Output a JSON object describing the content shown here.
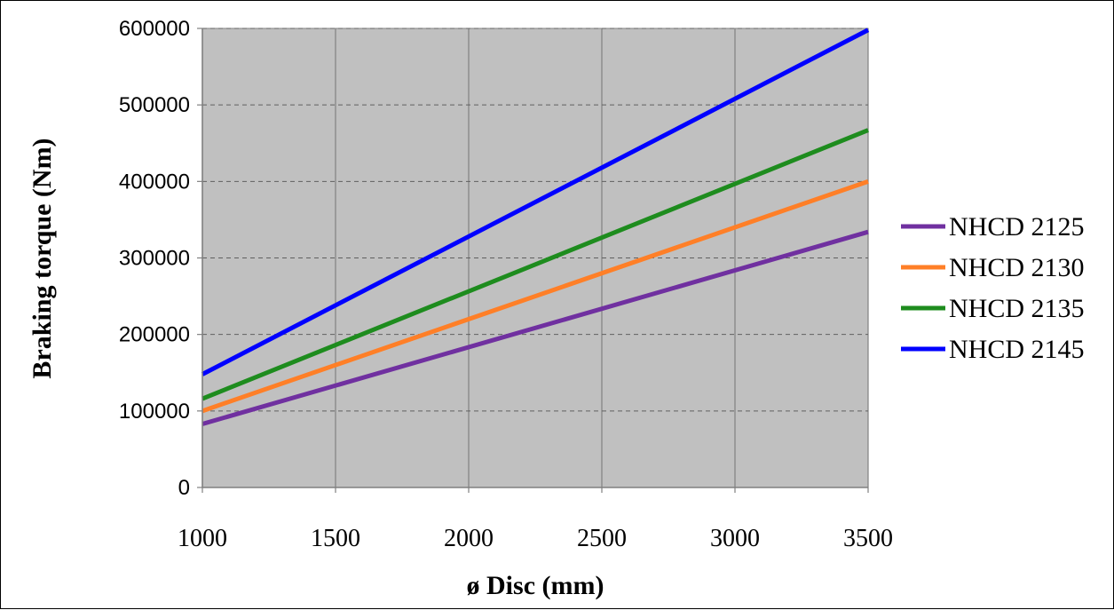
{
  "chart_data": {
    "type": "line",
    "xlabel": "ø Disc (mm)",
    "ylabel": "Braking torque (Nm)",
    "xlim": [
      1000,
      3500
    ],
    "ylim": [
      0,
      600000
    ],
    "x_ticks": [
      "1000",
      "1500",
      "2000",
      "2500",
      "3000",
      "3500"
    ],
    "y_ticks": [
      "0",
      "100000",
      "200000",
      "300000",
      "400000",
      "500000",
      "600000"
    ],
    "plot_background": "#c0c0c0",
    "vertical_grid": "solid",
    "horizontal_grid": "dashed",
    "legend_position": "right",
    "series": [
      {
        "name": "NHCD 2125",
        "color": "#7030a0",
        "x": [
          1000,
          3500
        ],
        "y": [
          83000,
          334000
        ]
      },
      {
        "name": "NHCD 2130",
        "color": "#ff7f27",
        "x": [
          1000,
          3500
        ],
        "y": [
          100000,
          400000
        ]
      },
      {
        "name": "NHCD 2135",
        "color": "#1e8c1e",
        "x": [
          1000,
          3500
        ],
        "y": [
          116000,
          467000
        ]
      },
      {
        "name": "NHCD 2145",
        "color": "#0000ff",
        "x": [
          1000,
          3500
        ],
        "y": [
          148000,
          598000
        ]
      }
    ]
  }
}
